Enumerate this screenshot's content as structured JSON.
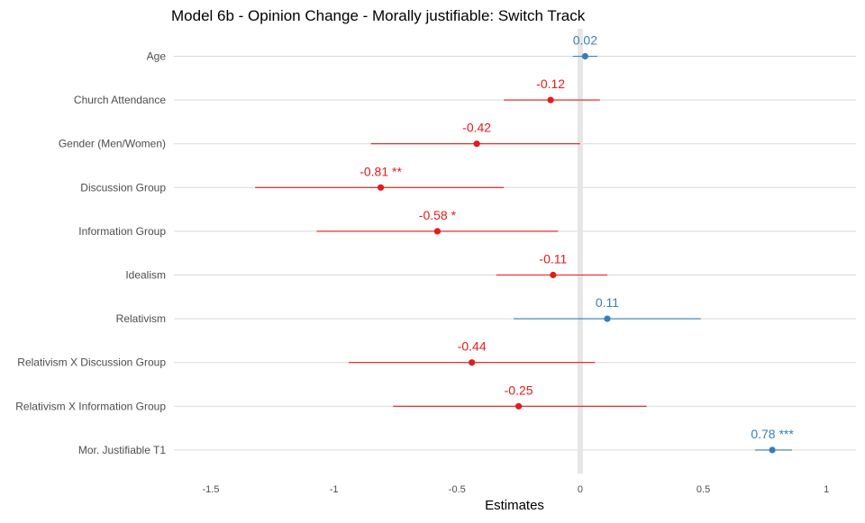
{
  "chart_data": {
    "type": "forest",
    "title": "Model 6b - Opinion Change - Morally justifiable: Switch Track",
    "xlabel": "Estimates",
    "ylabel": "",
    "xlim": [
      -1.65,
      1.12
    ],
    "xticks": [
      -1.5,
      -1,
      -0.5,
      0,
      0.5,
      1
    ],
    "xtick_labels": [
      "-1.5",
      "-1",
      "-0.5",
      "0",
      "0.5",
      "1"
    ],
    "grid": true,
    "reference_line": 0,
    "colors": {
      "negative": "#e41a1c",
      "positive": "#377eb8",
      "reference": "#e6e6e6"
    },
    "terms": [
      {
        "label": "Age",
        "estimate": 0.02,
        "ci_low": -0.03,
        "ci_high": 0.07,
        "value_label": "0.02"
      },
      {
        "label": "Church Attendance",
        "estimate": -0.12,
        "ci_low": -0.31,
        "ci_high": 0.08,
        "value_label": "-0.12"
      },
      {
        "label": "Gender (Men/Women)",
        "estimate": -0.42,
        "ci_low": -0.85,
        "ci_high": 0.0,
        "value_label": "-0.42"
      },
      {
        "label": "Discussion Group",
        "estimate": -0.81,
        "ci_low": -1.32,
        "ci_high": -0.31,
        "value_label": "-0.81 **"
      },
      {
        "label": "Information Group",
        "estimate": -0.58,
        "ci_low": -1.07,
        "ci_high": -0.09,
        "value_label": "-0.58 *"
      },
      {
        "label": "Idealism",
        "estimate": -0.11,
        "ci_low": -0.34,
        "ci_high": 0.11,
        "value_label": "-0.11"
      },
      {
        "label": "Relativism",
        "estimate": 0.11,
        "ci_low": -0.27,
        "ci_high": 0.49,
        "value_label": "0.11"
      },
      {
        "label": "Relativism X Discussion Group",
        "estimate": -0.44,
        "ci_low": -0.94,
        "ci_high": 0.06,
        "value_label": "-0.44"
      },
      {
        "label": "Relativism X Information Group",
        "estimate": -0.25,
        "ci_low": -0.76,
        "ci_high": 0.27,
        "value_label": "-0.25"
      },
      {
        "label": "Mor. Justifiable T1",
        "estimate": 0.78,
        "ci_low": 0.71,
        "ci_high": 0.86,
        "value_label": "0.78 ***"
      }
    ]
  }
}
